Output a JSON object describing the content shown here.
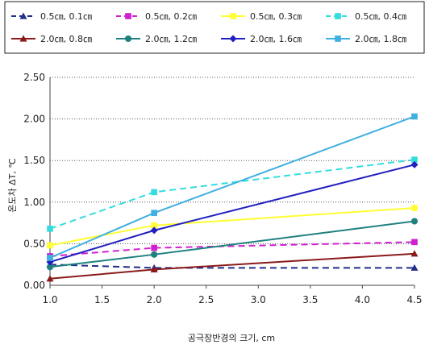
{
  "chart_data": {
    "type": "line",
    "title": "",
    "xlabel": "공극장반경의 크기, cm",
    "ylabel": "온도차 ΔT, ℃",
    "x": [
      1.0,
      2.0,
      4.5
    ],
    "xlim": [
      1.0,
      4.5
    ],
    "ylim": [
      0.0,
      2.5
    ],
    "x_ticks": [
      "1.0",
      "1.5",
      "2.0",
      "2.5",
      "3.0",
      "3.5",
      "4.0",
      "4.5"
    ],
    "y_ticks": [
      "0.00",
      "0.50",
      "1.00",
      "1.50",
      "2.00",
      "2.50"
    ],
    "grid": "horizontal dotted",
    "legend_position": "top",
    "series": [
      {
        "name": "0.5㎝, 0.1㎝",
        "values": [
          0.25,
          0.21,
          0.21
        ],
        "color": "#1f2f8a",
        "dash": "dashed",
        "marker": "triangle"
      },
      {
        "name": "0.5㎝, 0.2㎝",
        "values": [
          0.35,
          0.45,
          0.52
        ],
        "color": "#d020d0",
        "dash": "dashed",
        "marker": "square"
      },
      {
        "name": "0.5㎝, 0.3㎝",
        "values": [
          0.48,
          0.72,
          0.93
        ],
        "color": "#ffff33",
        "dash": "solid",
        "marker": "square"
      },
      {
        "name": "0.5㎝, 0.4㎝",
        "values": [
          0.68,
          1.12,
          1.51
        ],
        "color": "#33dddd",
        "dash": "dashed",
        "marker": "square"
      },
      {
        "name": "2.0㎝, 0.8㎝",
        "values": [
          0.08,
          0.19,
          0.38
        ],
        "color": "#8b1a1a",
        "dash": "solid",
        "marker": "triangle"
      },
      {
        "name": "2.0㎝, 1.2㎝",
        "values": [
          0.22,
          0.37,
          0.77
        ],
        "color": "#1f8080",
        "dash": "solid",
        "marker": "circle"
      },
      {
        "name": "2.0㎝, 1.6㎝",
        "values": [
          0.28,
          0.66,
          1.45
        ],
        "color": "#2020c0",
        "dash": "solid",
        "marker": "diamond"
      },
      {
        "name": "2.0㎝, 1.8㎝",
        "values": [
          0.33,
          0.87,
          2.03
        ],
        "color": "#3fb0e0",
        "dash": "solid",
        "marker": "square"
      }
    ]
  }
}
